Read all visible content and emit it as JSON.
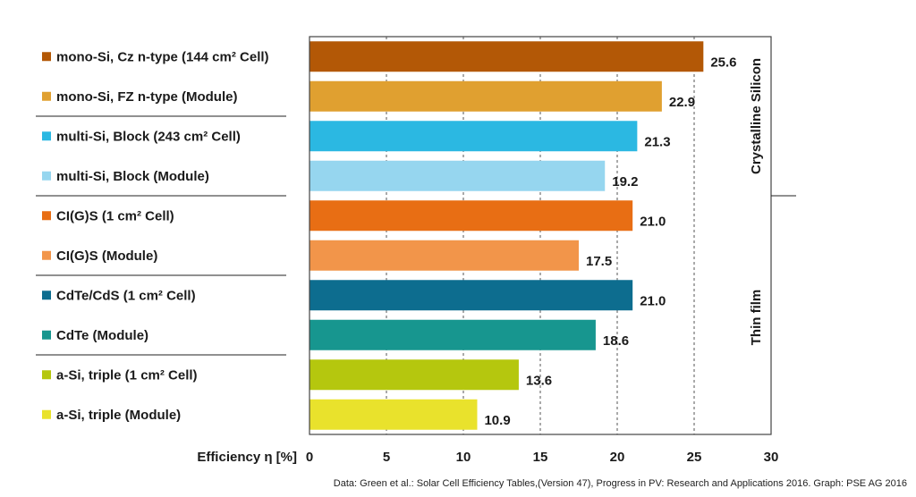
{
  "chart_data": {
    "type": "bar",
    "orientation": "horizontal",
    "xlabel": "Efficiency η [%]",
    "xlim": [
      0,
      30
    ],
    "xticks": [
      0,
      5,
      10,
      15,
      20,
      25,
      30
    ],
    "grid": "vertical dashed",
    "categories": [
      "mono-Si, Cz n-type (144 cm² Cell)",
      "mono-Si, FZ n-type (Module)",
      "multi-Si, Block (243 cm² Cell)",
      "multi-Si, Block (Module)",
      "CI(G)S (1 cm² Cell)",
      "CI(G)S (Module)",
      "CdTe/CdS (1 cm² Cell)",
      "CdTe (Module)",
      "a-Si, triple (1 cm² Cell)",
      "a-Si, triple (Module)"
    ],
    "values": [
      25.6,
      22.9,
      21.3,
      19.2,
      21.0,
      17.5,
      21.0,
      18.6,
      13.6,
      10.9
    ],
    "value_labels": [
      "25.6",
      "22.9",
      "21.3",
      "19.2",
      "21.0",
      "17.5",
      "21.0",
      "18.6",
      "13.6",
      "10.9"
    ],
    "colors": [
      "#b35806",
      "#e0a030",
      "#2bb8e2",
      "#96d6ef",
      "#e86e14",
      "#f2954a",
      "#0d6d8f",
      "#17968f",
      "#b5c70e",
      "#e9e22c"
    ],
    "groups": [
      {
        "label": "Crystalline Silicon",
        "from": 0,
        "to": 3
      },
      {
        "label": "Thin film",
        "from": 4,
        "to": 9
      }
    ]
  },
  "source": "Data: Green et al.: Solar Cell Efficiency Tables,(Version 47), Progress in PV: Research and Applications 2016. Graph: PSE AG 2016"
}
